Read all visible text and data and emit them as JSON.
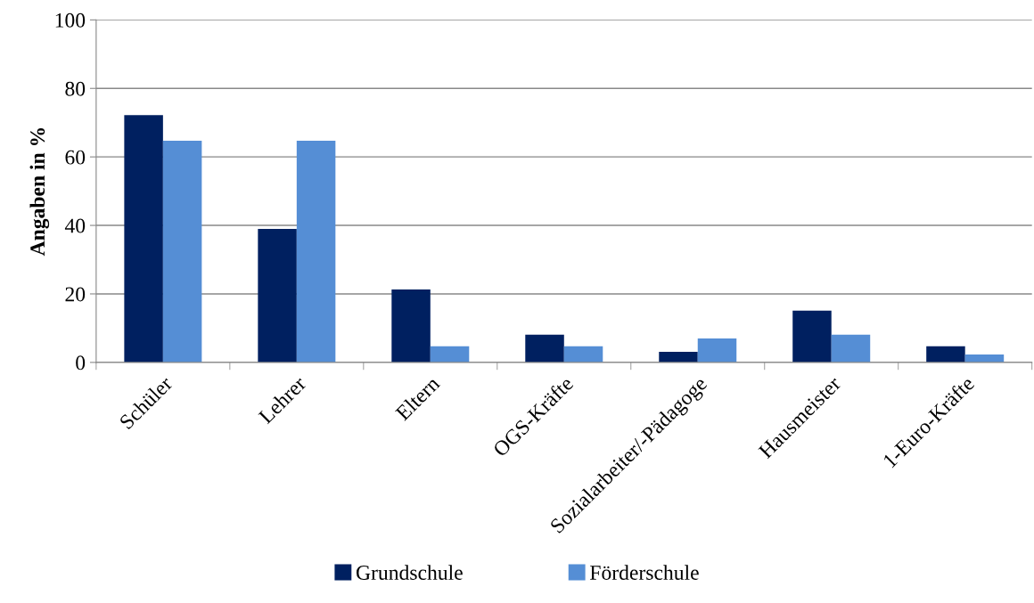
{
  "chart_data": {
    "type": "bar",
    "ylabel": "Angaben in %",
    "categories": [
      "Schüler",
      "Lehrer",
      "Eltern",
      "OGS-Kräfte",
      "Sozialarbeiter/-Pädagoge",
      "Hausmeister",
      "1-Euro-Kräfte"
    ],
    "series": [
      {
        "name": "Grundschule",
        "color": "#002060",
        "values": [
          72.2,
          39.0,
          21.3,
          8.1,
          3.1,
          15.1,
          4.7
        ]
      },
      {
        "name": "Förderschule",
        "color": "#558ed5",
        "values": [
          64.7,
          64.7,
          4.7,
          4.7,
          7.0,
          8.1,
          2.3
        ]
      }
    ],
    "ylim": [
      0,
      100
    ],
    "yticks": [
      0,
      20,
      40,
      60,
      80,
      100
    ],
    "grid": "y",
    "legend": "bottom"
  }
}
